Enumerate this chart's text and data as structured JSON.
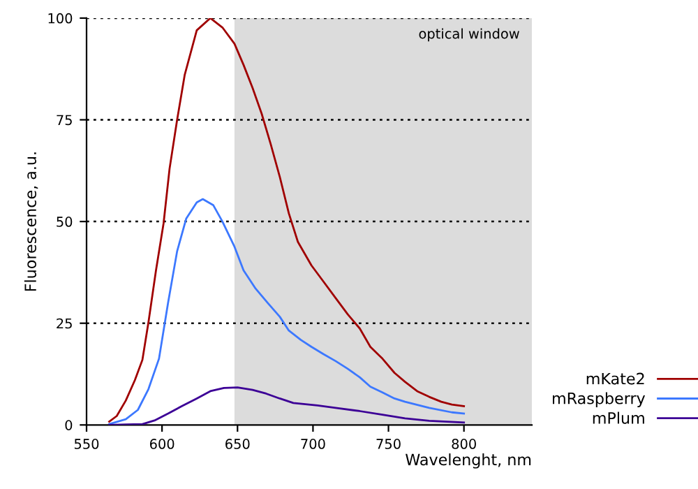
{
  "chart_data": {
    "type": "line",
    "xlabel": "Wavelenght, nm",
    "ylabel": "Fluorescence, a.u.",
    "xlim": [
      550,
      845
    ],
    "xticks": [
      550,
      600,
      650,
      700,
      750,
      800
    ],
    "ylim": [
      0,
      100
    ],
    "yticks": [
      0,
      25,
      50,
      75,
      100
    ],
    "grid": "y",
    "legend": "right",
    "line_style": "solid",
    "bands": [
      {
        "axis": "x",
        "from": 648,
        "to": 845,
        "label": "optical window",
        "color": "#dcdcdc"
      }
    ],
    "series": [
      {
        "name": "mKate2",
        "color": "#a00000",
        "x": [
          565,
          570,
          576,
          582,
          587,
          591,
          596,
          601,
          605,
          610,
          615,
          623,
          632,
          640,
          648,
          654,
          660,
          666,
          672,
          678,
          684,
          690,
          699,
          707,
          715,
          723,
          731,
          738,
          746,
          754,
          761,
          769,
          777,
          785,
          792,
          800
        ],
        "values": [
          0.8,
          2.2,
          6,
          11,
          16,
          25.2,
          38,
          49.5,
          63,
          75,
          86,
          97,
          100,
          97.7,
          93.7,
          88.5,
          82.8,
          76.5,
          69,
          61,
          52,
          45,
          39.2,
          35.2,
          31.2,
          27.2,
          23.7,
          19.2,
          16.3,
          12.8,
          10.6,
          8.3,
          6.9,
          5.7,
          5,
          4.6
        ]
      },
      {
        "name": "mRaspberry",
        "color": "#3c78ff",
        "x": [
          565,
          576,
          584,
          591,
          598,
          604,
          610,
          616,
          623,
          627,
          634,
          640,
          648,
          654,
          662,
          670,
          678,
          684,
          692,
          699,
          707,
          715,
          723,
          731,
          738,
          746,
          754,
          761,
          777,
          792,
          800
        ],
        "values": [
          0.2,
          1.4,
          3.7,
          8.8,
          16.3,
          30,
          42.7,
          50.7,
          54.7,
          55.5,
          54,
          50,
          43.8,
          38,
          33.5,
          30,
          26.6,
          23.2,
          20.9,
          19.2,
          17.4,
          15.7,
          13.8,
          11.7,
          9.4,
          8,
          6.5,
          5.7,
          4.2,
          3.1,
          2.8
        ]
      },
      {
        "name": "mPlum",
        "color": "#3c0096",
        "x": [
          565,
          576,
          587,
          595,
          604,
          613,
          623,
          632,
          641,
          650,
          660,
          669,
          678,
          687,
          703,
          715,
          731,
          746,
          761,
          777,
          800
        ],
        "values": [
          0,
          0.1,
          0.2,
          1.1,
          2.8,
          4.6,
          6.5,
          8.3,
          9.1,
          9.2,
          8.6,
          7.7,
          6.5,
          5.4,
          4.8,
          4.2,
          3.4,
          2.5,
          1.6,
          1,
          0.6
        ]
      }
    ]
  }
}
